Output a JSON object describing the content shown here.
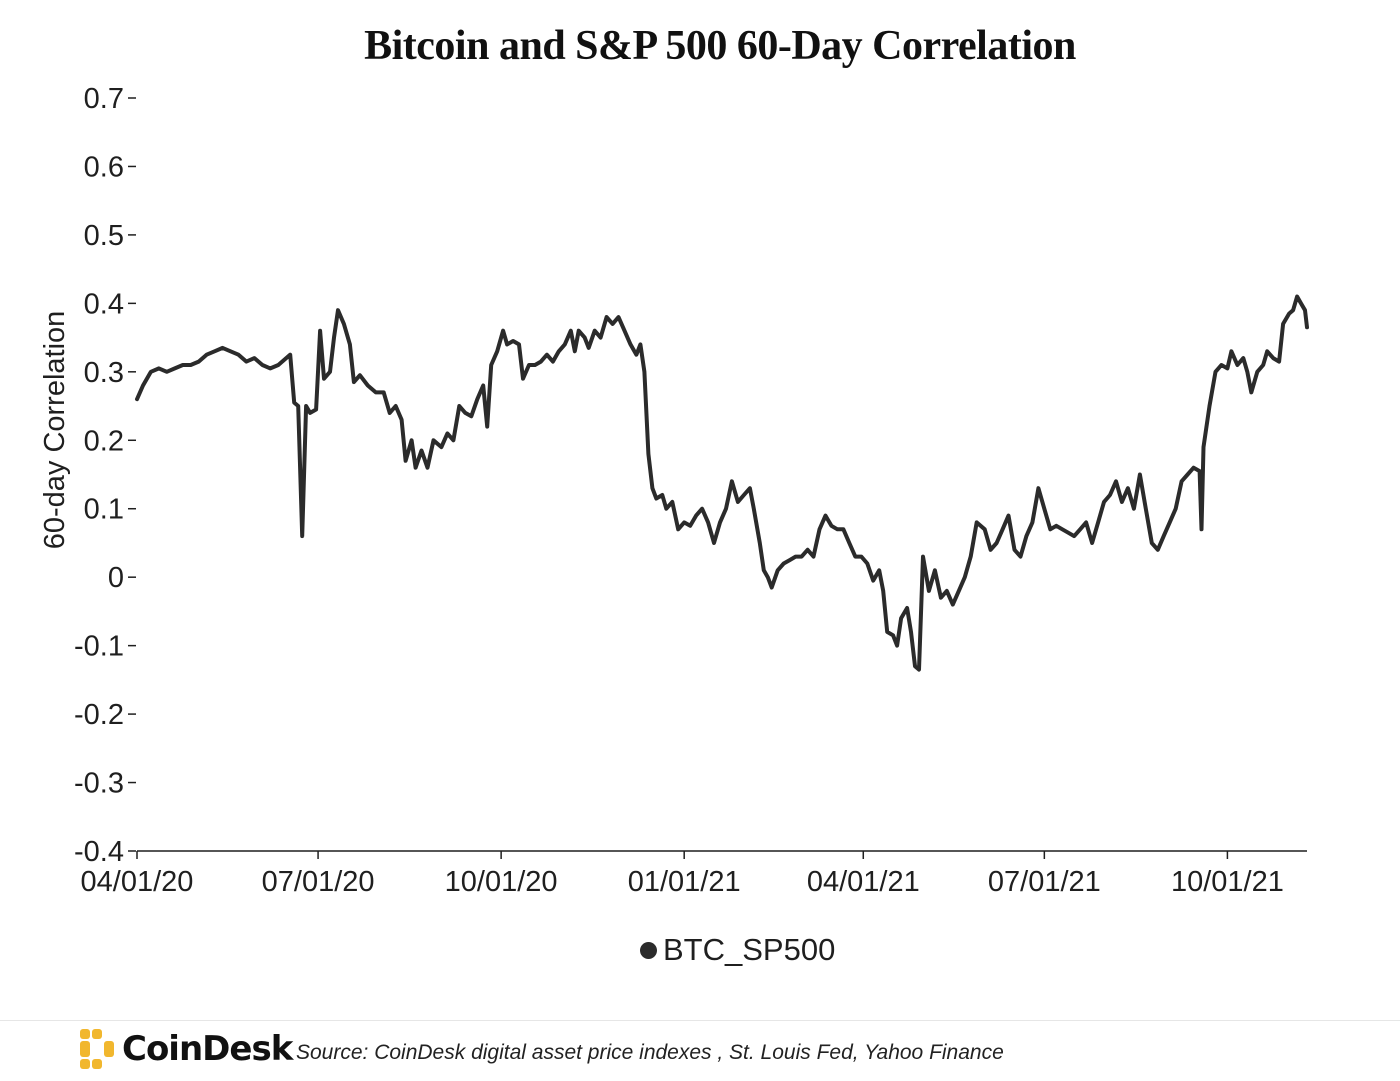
{
  "chart_data": {
    "type": "line",
    "title": "Bitcoin and S&P 500 60-Day Correlation",
    "ylabel": "60-day Correlation",
    "xlabel": "",
    "ylim": [
      -0.4,
      0.7
    ],
    "yticks": [
      0.7,
      0.6,
      0.5,
      0.4,
      0.3,
      0.2,
      0.1,
      0,
      -0.1,
      -0.2,
      -0.3,
      -0.4
    ],
    "ytick_labels": [
      "0.7",
      "0.6",
      "0.5",
      "0.4",
      "0.3",
      "0.2",
      "0.1",
      "0",
      "-0.1",
      "-0.2",
      "-0.3",
      "-0.4"
    ],
    "xlim": [
      "2020-04-01",
      "2021-11-10"
    ],
    "xticks": [
      "2020-04-01",
      "2020-07-01",
      "2020-10-01",
      "2021-01-01",
      "2021-04-01",
      "2021-07-01",
      "2021-10-01"
    ],
    "xtick_labels": [
      "04/01/20",
      "07/01/20",
      "10/01/20",
      "01/01/21",
      "04/01/21",
      "07/01/21",
      "10/01/21"
    ],
    "grid": false,
    "legend_position": "bottom-center",
    "series": [
      {
        "name": "BTC_SP500",
        "color": "#2b2b2b",
        "points": [
          [
            "2020-04-01",
            0.26
          ],
          [
            "2020-04-04",
            0.28
          ],
          [
            "2020-04-08",
            0.3
          ],
          [
            "2020-04-12",
            0.305
          ],
          [
            "2020-04-16",
            0.3
          ],
          [
            "2020-04-20",
            0.305
          ],
          [
            "2020-04-24",
            0.31
          ],
          [
            "2020-04-28",
            0.31
          ],
          [
            "2020-05-02",
            0.315
          ],
          [
            "2020-05-06",
            0.325
          ],
          [
            "2020-05-10",
            0.33
          ],
          [
            "2020-05-14",
            0.335
          ],
          [
            "2020-05-18",
            0.33
          ],
          [
            "2020-05-22",
            0.325
          ],
          [
            "2020-05-26",
            0.315
          ],
          [
            "2020-05-30",
            0.32
          ],
          [
            "2020-06-03",
            0.31
          ],
          [
            "2020-06-07",
            0.305
          ],
          [
            "2020-06-11",
            0.31
          ],
          [
            "2020-06-15",
            0.32
          ],
          [
            "2020-06-17",
            0.325
          ],
          [
            "2020-06-19",
            0.255
          ],
          [
            "2020-06-21",
            0.25
          ],
          [
            "2020-06-23",
            0.06
          ],
          [
            "2020-06-25",
            0.25
          ],
          [
            "2020-06-27",
            0.24
          ],
          [
            "2020-06-30",
            0.245
          ],
          [
            "2020-07-02",
            0.36
          ],
          [
            "2020-07-04",
            0.29
          ],
          [
            "2020-07-07",
            0.3
          ],
          [
            "2020-07-09",
            0.35
          ],
          [
            "2020-07-11",
            0.39
          ],
          [
            "2020-07-14",
            0.37
          ],
          [
            "2020-07-17",
            0.34
          ],
          [
            "2020-07-19",
            0.285
          ],
          [
            "2020-07-22",
            0.295
          ],
          [
            "2020-07-26",
            0.28
          ],
          [
            "2020-07-30",
            0.27
          ],
          [
            "2020-08-03",
            0.27
          ],
          [
            "2020-08-06",
            0.24
          ],
          [
            "2020-08-09",
            0.25
          ],
          [
            "2020-08-12",
            0.23
          ],
          [
            "2020-08-14",
            0.17
          ],
          [
            "2020-08-17",
            0.2
          ],
          [
            "2020-08-19",
            0.16
          ],
          [
            "2020-08-22",
            0.185
          ],
          [
            "2020-08-25",
            0.16
          ],
          [
            "2020-08-28",
            0.2
          ],
          [
            "2020-09-01",
            0.19
          ],
          [
            "2020-09-04",
            0.21
          ],
          [
            "2020-09-07",
            0.2
          ],
          [
            "2020-09-10",
            0.25
          ],
          [
            "2020-09-13",
            0.24
          ],
          [
            "2020-09-16",
            0.235
          ],
          [
            "2020-09-19",
            0.26
          ],
          [
            "2020-09-22",
            0.28
          ],
          [
            "2020-09-24",
            0.22
          ],
          [
            "2020-09-26",
            0.31
          ],
          [
            "2020-09-29",
            0.33
          ],
          [
            "2020-10-02",
            0.36
          ],
          [
            "2020-10-04",
            0.34
          ],
          [
            "2020-10-07",
            0.345
          ],
          [
            "2020-10-10",
            0.34
          ],
          [
            "2020-10-12",
            0.29
          ],
          [
            "2020-10-15",
            0.31
          ],
          [
            "2020-10-18",
            0.31
          ],
          [
            "2020-10-21",
            0.315
          ],
          [
            "2020-10-24",
            0.325
          ],
          [
            "2020-10-27",
            0.315
          ],
          [
            "2020-10-30",
            0.33
          ],
          [
            "2020-11-02",
            0.34
          ],
          [
            "2020-11-05",
            0.36
          ],
          [
            "2020-11-07",
            0.33
          ],
          [
            "2020-11-09",
            0.36
          ],
          [
            "2020-11-12",
            0.35
          ],
          [
            "2020-11-14",
            0.335
          ],
          [
            "2020-11-17",
            0.36
          ],
          [
            "2020-11-20",
            0.35
          ],
          [
            "2020-11-23",
            0.38
          ],
          [
            "2020-11-26",
            0.37
          ],
          [
            "2020-11-29",
            0.38
          ],
          [
            "2020-12-02",
            0.36
          ],
          [
            "2020-12-05",
            0.34
          ],
          [
            "2020-12-08",
            0.325
          ],
          [
            "2020-12-10",
            0.34
          ],
          [
            "2020-12-12",
            0.3
          ],
          [
            "2020-12-14",
            0.18
          ],
          [
            "2020-12-16",
            0.13
          ],
          [
            "2020-12-18",
            0.115
          ],
          [
            "2020-12-21",
            0.12
          ],
          [
            "2020-12-23",
            0.1
          ],
          [
            "2020-12-26",
            0.11
          ],
          [
            "2020-12-29",
            0.07
          ],
          [
            "2021-01-01",
            0.08
          ],
          [
            "2021-01-04",
            0.075
          ],
          [
            "2021-01-07",
            0.09
          ],
          [
            "2021-01-10",
            0.1
          ],
          [
            "2021-01-13",
            0.08
          ],
          [
            "2021-01-16",
            0.05
          ],
          [
            "2021-01-19",
            0.08
          ],
          [
            "2021-01-22",
            0.1
          ],
          [
            "2021-01-25",
            0.14
          ],
          [
            "2021-01-28",
            0.11
          ],
          [
            "2021-01-31",
            0.12
          ],
          [
            "2021-02-03",
            0.13
          ],
          [
            "2021-02-05",
            0.1
          ],
          [
            "2021-02-08",
            0.05
          ],
          [
            "2021-02-10",
            0.01
          ],
          [
            "2021-02-12",
            0.0
          ],
          [
            "2021-02-14",
            -0.015
          ],
          [
            "2021-02-17",
            0.01
          ],
          [
            "2021-02-20",
            0.02
          ],
          [
            "2021-02-23",
            0.025
          ],
          [
            "2021-02-26",
            0.03
          ],
          [
            "2021-03-01",
            0.03
          ],
          [
            "2021-03-04",
            0.04
          ],
          [
            "2021-03-07",
            0.03
          ],
          [
            "2021-03-10",
            0.07
          ],
          [
            "2021-03-13",
            0.09
          ],
          [
            "2021-03-16",
            0.075
          ],
          [
            "2021-03-19",
            0.07
          ],
          [
            "2021-03-22",
            0.07
          ],
          [
            "2021-03-25",
            0.05
          ],
          [
            "2021-03-28",
            0.03
          ],
          [
            "2021-03-31",
            0.03
          ],
          [
            "2021-04-03",
            0.02
          ],
          [
            "2021-04-06",
            -0.005
          ],
          [
            "2021-04-09",
            0.01
          ],
          [
            "2021-04-11",
            -0.02
          ],
          [
            "2021-04-13",
            -0.08
          ],
          [
            "2021-04-16",
            -0.085
          ],
          [
            "2021-04-18",
            -0.1
          ],
          [
            "2021-04-20",
            -0.06
          ],
          [
            "2021-04-23",
            -0.045
          ],
          [
            "2021-04-25",
            -0.08
          ],
          [
            "2021-04-27",
            -0.13
          ],
          [
            "2021-04-29",
            -0.135
          ],
          [
            "2021-05-01",
            0.03
          ],
          [
            "2021-05-04",
            -0.02
          ],
          [
            "2021-05-07",
            0.01
          ],
          [
            "2021-05-10",
            -0.03
          ],
          [
            "2021-05-13",
            -0.02
          ],
          [
            "2021-05-16",
            -0.04
          ],
          [
            "2021-05-19",
            -0.02
          ],
          [
            "2021-05-22",
            0.0
          ],
          [
            "2021-05-25",
            0.03
          ],
          [
            "2021-05-28",
            0.08
          ],
          [
            "2021-06-01",
            0.07
          ],
          [
            "2021-06-04",
            0.04
          ],
          [
            "2021-06-07",
            0.05
          ],
          [
            "2021-06-10",
            0.07
          ],
          [
            "2021-06-13",
            0.09
          ],
          [
            "2021-06-16",
            0.04
          ],
          [
            "2021-06-19",
            0.03
          ],
          [
            "2021-06-22",
            0.06
          ],
          [
            "2021-06-25",
            0.08
          ],
          [
            "2021-06-28",
            0.13
          ],
          [
            "2021-07-01",
            0.1
          ],
          [
            "2021-07-04",
            0.07
          ],
          [
            "2021-07-07",
            0.075
          ],
          [
            "2021-07-10",
            0.07
          ],
          [
            "2021-07-13",
            0.065
          ],
          [
            "2021-07-16",
            0.06
          ],
          [
            "2021-07-19",
            0.07
          ],
          [
            "2021-07-22",
            0.08
          ],
          [
            "2021-07-25",
            0.05
          ],
          [
            "2021-07-28",
            0.08
          ],
          [
            "2021-07-31",
            0.11
          ],
          [
            "2021-08-03",
            0.12
          ],
          [
            "2021-08-06",
            0.14
          ],
          [
            "2021-08-09",
            0.11
          ],
          [
            "2021-08-12",
            0.13
          ],
          [
            "2021-08-15",
            0.1
          ],
          [
            "2021-08-18",
            0.15
          ],
          [
            "2021-08-21",
            0.1
          ],
          [
            "2021-08-24",
            0.05
          ],
          [
            "2021-08-27",
            0.04
          ],
          [
            "2021-08-30",
            0.06
          ],
          [
            "2021-09-02",
            0.08
          ],
          [
            "2021-09-05",
            0.1
          ],
          [
            "2021-09-08",
            0.14
          ],
          [
            "2021-09-11",
            0.15
          ],
          [
            "2021-09-14",
            0.16
          ],
          [
            "2021-09-17",
            0.155
          ],
          [
            "2021-09-18",
            0.07
          ],
          [
            "2021-09-19",
            0.19
          ],
          [
            "2021-09-22",
            0.25
          ],
          [
            "2021-09-25",
            0.3
          ],
          [
            "2021-09-28",
            0.31
          ],
          [
            "2021-10-01",
            0.305
          ],
          [
            "2021-10-03",
            0.33
          ],
          [
            "2021-10-06",
            0.31
          ],
          [
            "2021-10-09",
            0.32
          ],
          [
            "2021-10-11",
            0.3
          ],
          [
            "2021-10-13",
            0.27
          ],
          [
            "2021-10-16",
            0.3
          ],
          [
            "2021-10-19",
            0.31
          ],
          [
            "2021-10-21",
            0.33
          ],
          [
            "2021-10-24",
            0.32
          ],
          [
            "2021-10-27",
            0.315
          ],
          [
            "2021-10-29",
            0.37
          ],
          [
            "2021-11-01",
            0.385
          ],
          [
            "2021-11-03",
            0.39
          ],
          [
            "2021-11-05",
            0.41
          ],
          [
            "2021-11-07",
            0.4
          ],
          [
            "2021-11-09",
            0.39
          ],
          [
            "2021-11-10",
            0.365
          ]
        ]
      }
    ]
  },
  "footer": {
    "brand": "CoinDesk",
    "source": "Source: CoinDesk digital asset price indexes , St. Louis Fed, Yahoo Finance"
  }
}
